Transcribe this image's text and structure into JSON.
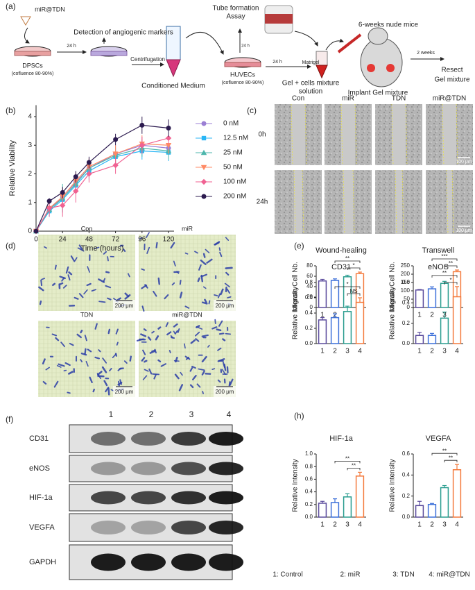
{
  "figure": {
    "panel_labels": [
      "(a)",
      "(b)",
      "(c)",
      "(d)",
      "(e)",
      "(f)",
      "(h)"
    ],
    "schematic": {
      "miR_TDN": "miR@TDN",
      "detection": "Detection of angiogenic markers",
      "h24_a": "24 h",
      "dpscs": "DPSCs",
      "conf_a": "(cofluence 80-90%)",
      "centrifugation": "Centrifugation",
      "conditioned": "Conditioned Medium",
      "tube_formation": "Tube formation",
      "assay": "Assay",
      "h24_b": "24 h",
      "huvecs": "HUVECs",
      "conf_b": "(cofluence 80-90%)",
      "matrigel": "Matrigel",
      "h24_c": "24 h",
      "mice": "6-weeks nude mice",
      "gel_mix": "Gel + cells mixture",
      "solution": "solution",
      "implant": "Implant Gel mixture",
      "weeks2": "2 weeks",
      "resect": "Resect",
      "gel_mixture": "Gel mixture"
    },
    "scratch": {
      "columns": [
        "Con",
        "miR",
        "TDN",
        "miR@TDN"
      ],
      "rows": [
        "0h",
        "24h"
      ],
      "scale": "100 μm"
    },
    "transwell": {
      "labels": [
        "Con",
        "miR",
        "TDN",
        "miR@TDN"
      ],
      "scale": "200 μm"
    },
    "blot": {
      "lanes": [
        "1",
        "2",
        "3",
        "4"
      ],
      "proteins": [
        "CD31",
        "eNOS",
        "HIF-1a",
        "VEGFA",
        "GAPDH"
      ]
    },
    "group_legend": [
      "1: Control",
      "2: miR",
      "3: TDN",
      "4: miR@TDN"
    ]
  },
  "chart_data": [
    {
      "type": "line",
      "x_label": "Time (hours)",
      "y_label": "Relative Viability",
      "x": [
        0,
        12,
        24,
        36,
        48,
        72,
        96,
        120
      ],
      "xlim": [
        0,
        120
      ],
      "xticks": [
        0,
        24,
        48,
        72,
        96,
        120
      ],
      "ylim": [
        0,
        4.4
      ],
      "yticks": [
        0,
        1,
        2,
        3,
        4
      ],
      "series": [
        {
          "name": "0 nM",
          "color": "#9b7fd4",
          "marker": "circle",
          "values": [
            0,
            0.75,
            1.2,
            1.7,
            2.2,
            2.7,
            3.0,
            2.9
          ],
          "errors": [
            0,
            0.15,
            0.3,
            0.3,
            0.3,
            0.3,
            0.3,
            0.3
          ]
        },
        {
          "name": "12.5 nM",
          "color": "#29b6f6",
          "marker": "square",
          "values": [
            0,
            0.7,
            1.1,
            1.6,
            2.1,
            2.6,
            2.8,
            2.75
          ],
          "errors": [
            0,
            0.2,
            0.3,
            0.3,
            0.3,
            0.3,
            0.3,
            0.3
          ]
        },
        {
          "name": "25 nM",
          "color": "#4db6ac",
          "marker": "triangle",
          "values": [
            0,
            0.75,
            1.15,
            1.65,
            2.2,
            2.65,
            2.9,
            2.8
          ],
          "errors": [
            0,
            0.15,
            0.5,
            0.3,
            0.3,
            0.3,
            0.3,
            0.3
          ]
        },
        {
          "name": "50 nM",
          "color": "#ff8a65",
          "marker": "triangle-down",
          "values": [
            0,
            0.8,
            1.2,
            1.75,
            2.25,
            2.7,
            3.05,
            3.0
          ],
          "errors": [
            0,
            0.2,
            0.3,
            0.3,
            0.3,
            0.3,
            0.3,
            0.3
          ]
        },
        {
          "name": "100 nM",
          "color": "#f06292",
          "marker": "diamond",
          "values": [
            0,
            0.8,
            0.9,
            1.4,
            2.0,
            2.3,
            3.0,
            3.25
          ],
          "errors": [
            0,
            0.3,
            0.4,
            0.4,
            0.3,
            0.3,
            0.3,
            0.2
          ]
        },
        {
          "name": "200 nM",
          "color": "#2c1b4f",
          "marker": "circle",
          "values": [
            0,
            1.05,
            1.35,
            1.9,
            2.4,
            3.2,
            3.7,
            3.6
          ],
          "errors": [
            0,
            0.1,
            0.2,
            0.2,
            0.2,
            0.2,
            0.3,
            0.3
          ]
        }
      ]
    },
    {
      "type": "bar",
      "title": "Wound-healing",
      "y_label": "Migrate Cell Nb.",
      "categories": [
        "1",
        "2",
        "3",
        "4"
      ],
      "values": [
        51,
        52,
        59,
        65
      ],
      "errors": [
        3,
        3,
        3,
        3
      ],
      "colors": [
        "#5a4a9c",
        "#3b6fd9",
        "#2a9d8f",
        "#f4793b"
      ],
      "ylim": [
        0,
        80
      ],
      "yticks": [
        0,
        20,
        40,
        60,
        80
      ],
      "annotations": [
        "**",
        "*"
      ]
    },
    {
      "type": "bar",
      "title": "Transwell",
      "y_label": "Migrate Cell Nb.",
      "categories": [
        "1",
        "2",
        "3",
        "4"
      ],
      "values": [
        105,
        112,
        145,
        215
      ],
      "errors": [
        3,
        12,
        12,
        10
      ],
      "colors": [
        "#5a4a9c",
        "#3b6fd9",
        "#2a9d8f",
        "#f4793b"
      ],
      "ylim": [
        0,
        250
      ],
      "yticks": [
        0,
        50,
        100,
        150,
        200,
        250
      ],
      "annotations": [
        "***",
        "**"
      ]
    },
    {
      "type": "bar",
      "title": "CD31",
      "y_label": "Relative Intensity",
      "categories": [
        "1",
        "2",
        "3",
        "4"
      ],
      "values": [
        0.31,
        0.34,
        0.42,
        0.54
      ],
      "errors": [
        0.03,
        0.05,
        0.07,
        0.06
      ],
      "colors": [
        "#5a4a9c",
        "#3b6fd9",
        "#2a9d8f",
        "#f4793b"
      ],
      "ylim": [
        0,
        0.8
      ],
      "yticks": [
        {
          "value": 0,
          "label": "0.0"
        },
        0.2,
        0.4,
        0.6,
        0.8
      ],
      "annotations": [
        "*",
        "NS"
      ]
    },
    {
      "type": "bar",
      "title": "eNOS",
      "y_label": "Relative Intensity",
      "categories": [
        "1",
        "2",
        "3",
        "4"
      ],
      "values": [
        0.08,
        0.08,
        0.25,
        0.46
      ],
      "errors": [
        0.03,
        0.02,
        0.06,
        0.1
      ],
      "colors": [
        "#5a4a9c",
        "#3b6fd9",
        "#2a9d8f",
        "#f4793b"
      ],
      "ylim": [
        0,
        0.6
      ],
      "yticks": [
        {
          "value": 0,
          "label": "0.0"
        },
        0.2,
        0.4,
        0.6
      ],
      "annotations": [
        "**",
        "*"
      ]
    },
    {
      "type": "bar",
      "title": "HIF-1a",
      "y_label": "Relative Intensity",
      "categories": [
        "1",
        "2",
        "3",
        "4"
      ],
      "values": [
        0.22,
        0.23,
        0.32,
        0.65
      ],
      "errors": [
        0.03,
        0.06,
        0.05,
        0.06
      ],
      "colors": [
        "#5a4a9c",
        "#3b6fd9",
        "#2a9d8f",
        "#f4793b"
      ],
      "ylim": [
        0,
        1.0
      ],
      "yticks": [
        {
          "value": 0,
          "label": "0.0"
        },
        0.2,
        0.4,
        0.6,
        0.8,
        {
          "value": 1,
          "label": "1.0"
        }
      ],
      "annotations": [
        "**",
        "**"
      ]
    },
    {
      "type": "bar",
      "title": "VEGFA",
      "y_label": "Relative Intensity",
      "categories": [
        "1",
        "2",
        "3",
        "4"
      ],
      "values": [
        0.11,
        0.12,
        0.28,
        0.45
      ],
      "errors": [
        0.04,
        0.01,
        0.02,
        0.05
      ],
      "colors": [
        "#5a4a9c",
        "#3b6fd9",
        "#2a9d8f",
        "#f4793b"
      ],
      "ylim": [
        0,
        0.6
      ],
      "yticks": [
        {
          "value": 0,
          "label": "0.0"
        },
        0.2,
        0.4,
        0.6
      ],
      "annotations": [
        "**",
        "**"
      ]
    }
  ]
}
